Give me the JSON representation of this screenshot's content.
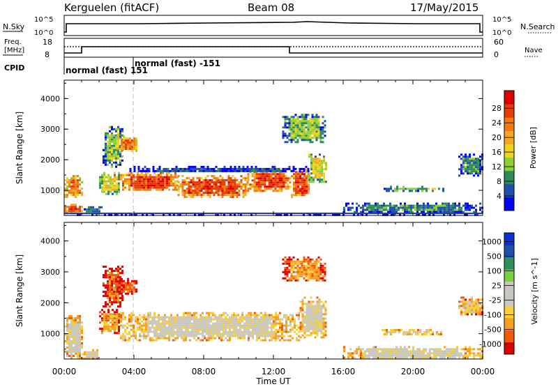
{
  "header": {
    "station": "Kerguelen (fitACF)",
    "beam": "Beam 08",
    "date": "17/May/2015"
  },
  "top_panels": {
    "nsky_label": "N.Sky",
    "nsky_ticks": [
      "10^5",
      "10^0"
    ],
    "nsearch_label": "N.Search",
    "nsearch_ticks": [
      "10^5",
      "10^0"
    ],
    "freq_label": "Freq.",
    "freq_unit": "[MHz]",
    "freq_ticks": [
      "18",
      "8"
    ],
    "nave_label": "Nave",
    "nave_ticks": [
      "60",
      "0"
    ],
    "cpid_label": "CPID",
    "cpid_segments": [
      "normal (fast) 151",
      "normal (fast) -151"
    ]
  },
  "colors": {
    "power_scale": [
      "#0000ff",
      "#1f4fa8",
      "#2e8a5b",
      "#8fcf3c",
      "#f2d21a",
      "#f5a623",
      "#f07a10",
      "#e63c0a",
      "#dd0000"
    ],
    "velocity_scale": [
      "#e00000",
      "#f05a0a",
      "#f5a020",
      "#f7cf3a",
      "#c8c8c0",
      "#c8c8c0",
      "#7ad040",
      "#2f8f5a",
      "#1f4fa8",
      "#0a2fd8"
    ],
    "ground_scatter": "#c8c8c4"
  },
  "chart_data": [
    {
      "type": "heatmap",
      "name": "power",
      "ylabel": "Slant Range [km]",
      "xlabel": "Time UT",
      "x_ticks": [
        "00:00",
        "04:00",
        "08:00",
        "12:00",
        "16:00",
        "20:00",
        "00:00"
      ],
      "y_ticks": [
        "1000",
        "2000",
        "3000",
        "4000"
      ],
      "ylim": [
        180,
        4600
      ],
      "xlim_hours": [
        0,
        24
      ],
      "colorbar_label": "Power [dB]",
      "colorbar_ticks": [
        "4",
        "8",
        "12",
        "16",
        "20",
        "24",
        "28"
      ],
      "regions": [
        {
          "t0": 0.0,
          "t1": 1.0,
          "r0": 800,
          "r1": 1500,
          "level": 6
        },
        {
          "t0": 0.0,
          "t1": 1.0,
          "r0": 280,
          "r1": 560,
          "level": 7
        },
        {
          "t0": 1.0,
          "t1": 2.2,
          "r0": 280,
          "r1": 480,
          "level": 2
        },
        {
          "t0": 2.0,
          "t1": 3.2,
          "r0": 900,
          "r1": 1600,
          "level": 4
        },
        {
          "t0": 2.2,
          "t1": 3.3,
          "r0": 1800,
          "r1": 3100,
          "level": 3
        },
        {
          "t0": 3.0,
          "t1": 4.2,
          "r0": 2300,
          "r1": 2800,
          "level": 6
        },
        {
          "t0": 3.2,
          "t1": 6.5,
          "r0": 1000,
          "r1": 1600,
          "level": 7
        },
        {
          "t0": 6.5,
          "t1": 10.5,
          "r0": 800,
          "r1": 1500,
          "level": 7
        },
        {
          "t0": 10.5,
          "t1": 13.0,
          "r0": 1000,
          "r1": 1700,
          "level": 7
        },
        {
          "t0": 13.0,
          "t1": 14.0,
          "r0": 800,
          "r1": 1700,
          "level": 7
        },
        {
          "t0": 14.0,
          "t1": 15.0,
          "r0": 1300,
          "r1": 2200,
          "level": 4
        },
        {
          "t0": 3.5,
          "t1": 14.0,
          "r0": 1600,
          "r1": 1800,
          "level": 1
        },
        {
          "t0": 12.5,
          "t1": 15.0,
          "r0": 2600,
          "r1": 3500,
          "level": 3
        },
        {
          "t0": 16.0,
          "t1": 24.0,
          "r0": 280,
          "r1": 600,
          "level": 2
        },
        {
          "t0": 18.2,
          "t1": 21.8,
          "r0": 1000,
          "r1": 1150,
          "level": 3
        },
        {
          "t0": 22.6,
          "t1": 24.0,
          "r0": 1500,
          "r1": 2200,
          "level": 2
        },
        {
          "t0": 0.0,
          "t1": 24.0,
          "r0": 180,
          "r1": 230,
          "level": 1
        }
      ]
    },
    {
      "type": "heatmap",
      "name": "velocity",
      "ylabel": "Slant Range [km]",
      "xlabel": "Time UT",
      "x_ticks": [
        "00:00",
        "04:00",
        "08:00",
        "12:00",
        "16:00",
        "20:00",
        "00:00"
      ],
      "y_ticks": [
        "1000",
        "2000",
        "3000",
        "4000"
      ],
      "ylim": [
        180,
        4600
      ],
      "xlim_hours": [
        0,
        24
      ],
      "colorbar_label": "Velocity [m s^-1]",
      "colorbar_ticks": [
        "1000",
        "500",
        "100",
        "25",
        "-25",
        "-100",
        "-500",
        "-1000"
      ],
      "regions": [
        {
          "t0": 0.0,
          "t1": 1.0,
          "r0": 200,
          "r1": 1600,
          "level": 4
        },
        {
          "t0": 1.0,
          "t1": 2.0,
          "r0": 200,
          "r1": 500,
          "level": 4
        },
        {
          "t0": 2.0,
          "t1": 3.2,
          "r0": 1000,
          "r1": 1800,
          "level": 2
        },
        {
          "t0": 2.2,
          "t1": 3.3,
          "r0": 1900,
          "r1": 3200,
          "level": 1
        },
        {
          "t0": 3.0,
          "t1": 4.2,
          "r0": 2300,
          "r1": 2800,
          "level": 1
        },
        {
          "t0": 3.2,
          "t1": 13.5,
          "r0": 800,
          "r1": 1700,
          "level": 4
        },
        {
          "t0": 13.5,
          "t1": 15.0,
          "r0": 900,
          "r1": 2200,
          "level": 4
        },
        {
          "t0": 12.5,
          "t1": 15.0,
          "r0": 2700,
          "r1": 3500,
          "level": 2
        },
        {
          "t0": 16.0,
          "t1": 24.0,
          "r0": 200,
          "r1": 600,
          "level": 4
        },
        {
          "t0": 18.2,
          "t1": 21.8,
          "r0": 1000,
          "r1": 1150,
          "level": 4
        },
        {
          "t0": 22.6,
          "t1": 24.0,
          "r0": 1600,
          "r1": 2200,
          "level": 3
        }
      ]
    }
  ]
}
